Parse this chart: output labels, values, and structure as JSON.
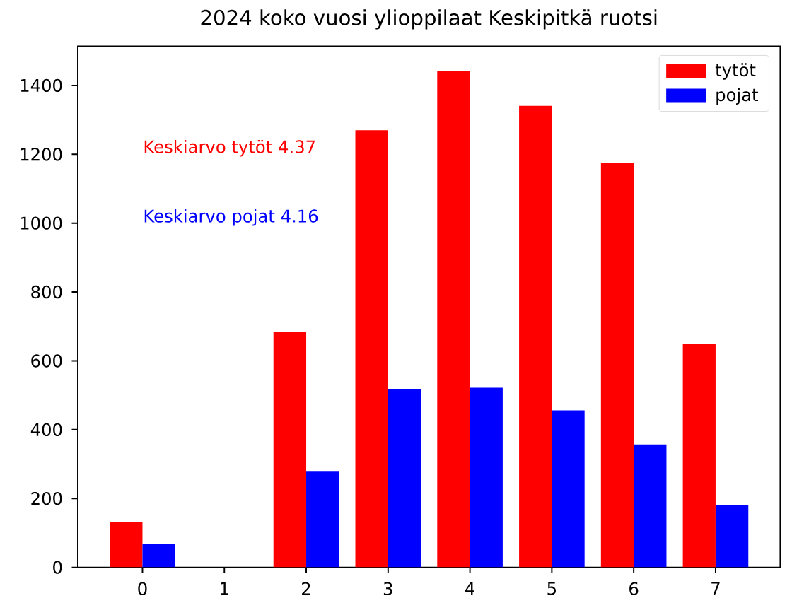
{
  "chart_data": {
    "type": "bar",
    "title": "2024 koko vuosi ylioppilaat Keskipitkä ruotsi",
    "x": [
      0,
      1,
      2,
      3,
      4,
      5,
      6,
      7
    ],
    "series": [
      {
        "name": "tytöt",
        "color": "#ff0000",
        "values": [
          132,
          0,
          685,
          1270,
          1442,
          1341,
          1176,
          648
        ]
      },
      {
        "name": "pojat",
        "color": "#0000ff",
        "values": [
          67,
          0,
          280,
          517,
          522,
          456,
          357,
          181
        ]
      }
    ],
    "xlim": [
      -0.79,
      7.79
    ],
    "xticks": [
      0,
      1,
      2,
      3,
      4,
      5,
      6,
      7
    ],
    "ylim": [
      0,
      1514
    ],
    "yticks": [
      0,
      200,
      400,
      600,
      800,
      1000,
      1200,
      1400
    ],
    "legend": "top right",
    "annotations": [
      "Keskiarvo tytöt 4.37",
      "Keskiarvo pojat 4.16"
    ]
  }
}
